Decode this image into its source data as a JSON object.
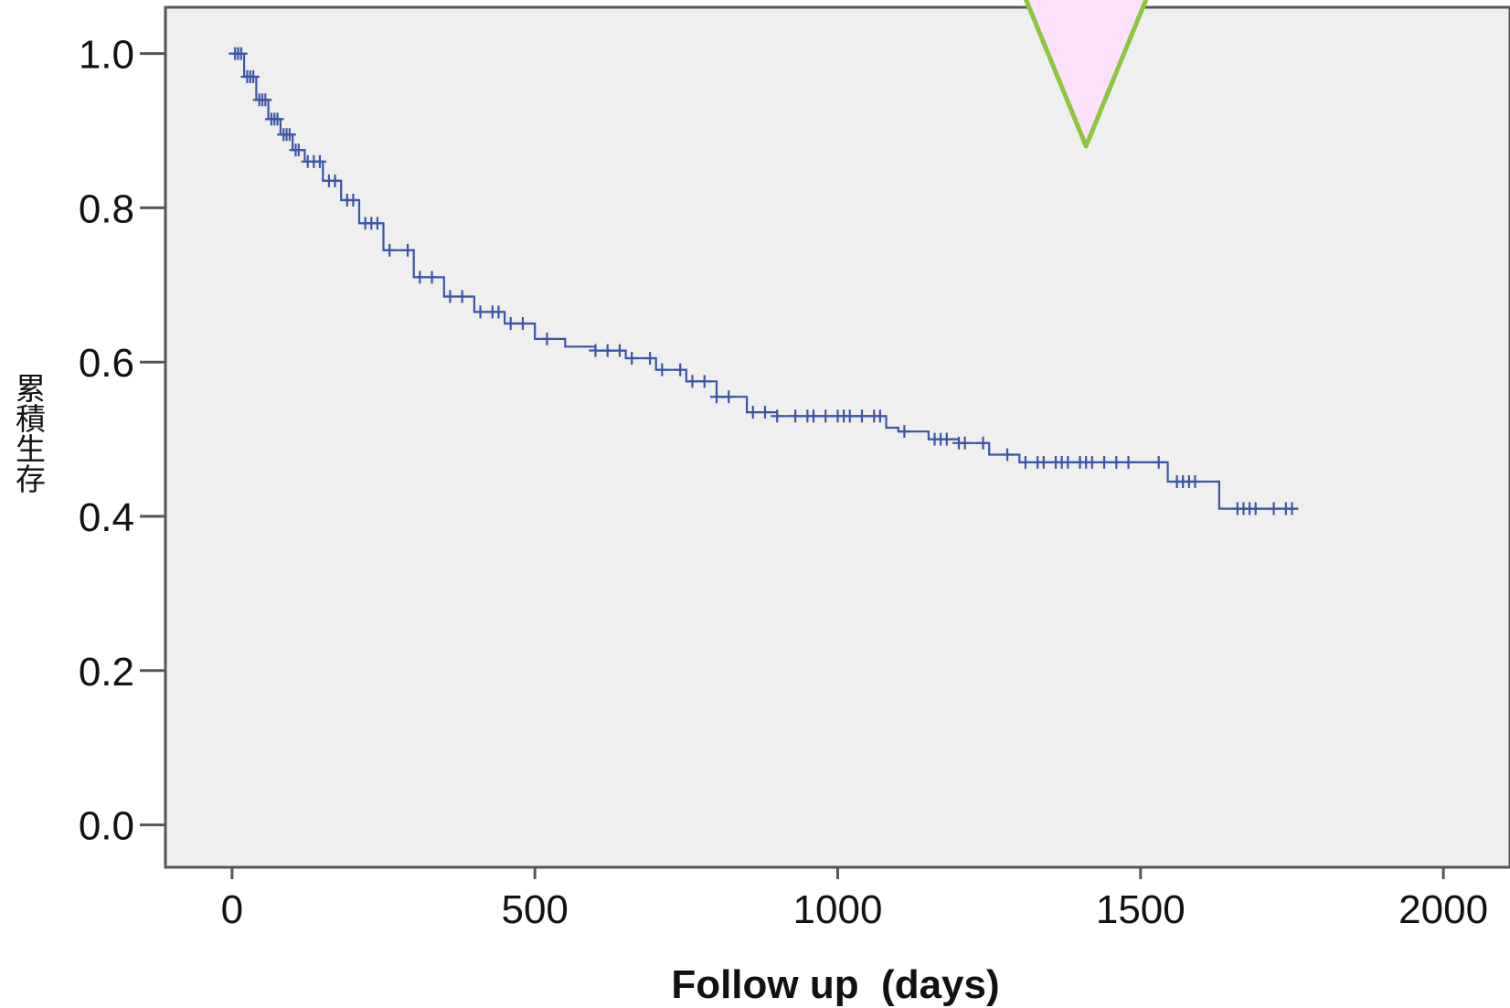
{
  "chart_data": {
    "type": "line",
    "title": "",
    "xlabel": "Follow up  (days)",
    "ylabel": "累積生存",
    "xlim": [
      -110,
      2110
    ],
    "ylim": [
      -0.055,
      1.06
    ],
    "x_ticks": [
      0,
      500,
      1000,
      1500,
      2000
    ],
    "x_tick_labels": [
      "0",
      "500",
      "1000",
      "1500",
      "2000"
    ],
    "y_ticks": [
      0.0,
      0.2,
      0.4,
      0.6,
      0.8,
      1.0
    ],
    "y_tick_labels": [
      "0.0",
      "0.2",
      "0.4",
      "0.6",
      "0.8",
      "1.0"
    ],
    "grid": false,
    "legend": "none",
    "colors": {
      "plot_background": "#efefef",
      "series": "#3b54a6",
      "marker_fill": "#fde0fa",
      "marker_stroke": "#8cc63f"
    },
    "series": [
      {
        "style": "step",
        "censor_marks": true,
        "x": [
          0,
          20,
          40,
          60,
          80,
          100,
          120,
          150,
          180,
          210,
          250,
          300,
          350,
          400,
          450,
          500,
          550,
          600,
          650,
          700,
          750,
          800,
          850,
          900,
          950,
          1000,
          1050,
          1080,
          1100,
          1150,
          1200,
          1250,
          1300,
          1350,
          1400,
          1450,
          1500,
          1545,
          1600,
          1630,
          1700,
          1760
        ],
        "values": [
          1.0,
          0.97,
          0.94,
          0.915,
          0.895,
          0.875,
          0.86,
          0.835,
          0.81,
          0.78,
          0.745,
          0.71,
          0.685,
          0.665,
          0.65,
          0.63,
          0.62,
          0.615,
          0.605,
          0.59,
          0.575,
          0.555,
          0.535,
          0.53,
          0.53,
          0.53,
          0.53,
          0.515,
          0.51,
          0.5,
          0.495,
          0.48,
          0.47,
          0.47,
          0.47,
          0.47,
          0.47,
          0.445,
          0.445,
          0.41,
          0.41,
          0.41
        ],
        "censored_x": [
          5,
          10,
          15,
          25,
          30,
          35,
          45,
          50,
          55,
          65,
          70,
          75,
          85,
          90,
          95,
          105,
          110,
          125,
          135,
          145,
          160,
          170,
          190,
          200,
          220,
          230,
          240,
          260,
          290,
          310,
          330,
          360,
          380,
          410,
          430,
          440,
          460,
          480,
          520,
          600,
          620,
          640,
          660,
          690,
          710,
          740,
          760,
          780,
          800,
          820,
          860,
          880,
          900,
          930,
          950,
          960,
          980,
          1000,
          1010,
          1020,
          1040,
          1060,
          1070,
          1110,
          1160,
          1170,
          1180,
          1200,
          1210,
          1240,
          1280,
          1310,
          1330,
          1340,
          1360,
          1370,
          1380,
          1400,
          1410,
          1420,
          1440,
          1460,
          1480,
          1530,
          1560,
          1570,
          1580,
          1590,
          1660,
          1670,
          1680,
          1690,
          1720,
          1740,
          1750
        ]
      }
    ],
    "annotation": {
      "shape": "inverted-triangle",
      "x": 1410,
      "y_tip": 0.88
    }
  }
}
